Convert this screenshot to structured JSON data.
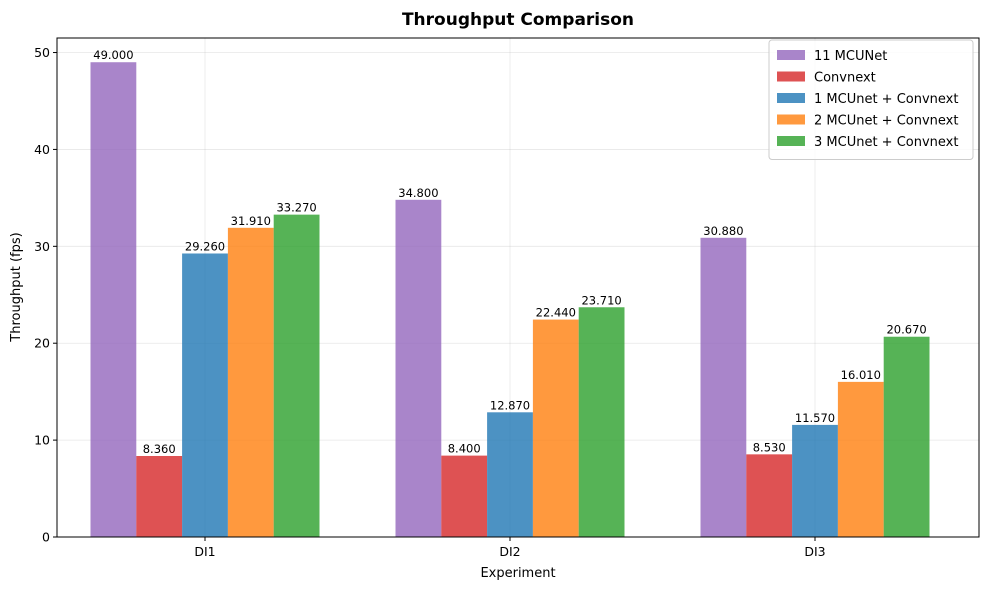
{
  "chart_data": {
    "type": "bar",
    "title": "Throughput Comparison",
    "xlabel": "Experiment",
    "ylabel": "Throughput (fps)",
    "categories": [
      "DI1",
      "DI2",
      "DI3"
    ],
    "ylim": [
      0,
      51.5
    ],
    "yticks": [
      0,
      10,
      20,
      30,
      40,
      50
    ],
    "grid": true,
    "legend_position": "top-right",
    "series": [
      {
        "name": "11 MCUNet",
        "color": "#9467bd",
        "values": [
          49.0,
          34.8,
          30.88
        ],
        "labels": [
          "49.000",
          "34.800",
          "30.880"
        ]
      },
      {
        "name": "Convnext",
        "color": "#d62728",
        "values": [
          8.36,
          8.4,
          8.53
        ],
        "labels": [
          "8.360",
          "8.400",
          "8.530"
        ]
      },
      {
        "name": "1 MCUnet + Convnext",
        "color": "#1f77b4",
        "values": [
          29.26,
          12.87,
          11.57
        ],
        "labels": [
          "29.260",
          "12.870",
          "11.570"
        ]
      },
      {
        "name": "2 MCUnet + Convnext",
        "color": "#ff7f0e",
        "values": [
          31.91,
          22.44,
          16.01
        ],
        "labels": [
          "31.910",
          "22.440",
          "16.010"
        ]
      },
      {
        "name": "3 MCUnet + Convnext",
        "color": "#2ca02c",
        "values": [
          33.27,
          23.71,
          20.67
        ],
        "labels": [
          "33.270",
          "23.710",
          "20.670"
        ]
      }
    ]
  }
}
